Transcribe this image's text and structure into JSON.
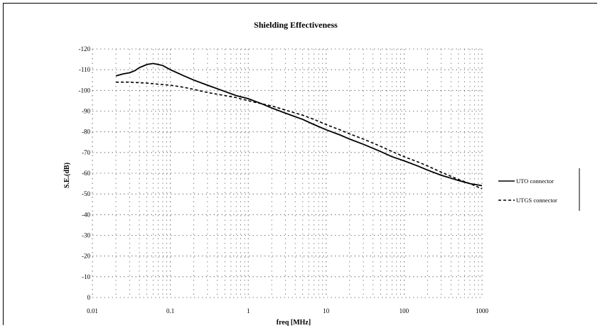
{
  "chart_data": {
    "type": "line",
    "title": "Shielding Effectiveness",
    "xlabel": "freq [MHz]",
    "ylabel": "S.E.(dB)",
    "xscale": "log",
    "xlim": [
      0.01,
      1000
    ],
    "ylim": [
      0,
      -120
    ],
    "x_ticks": [
      0.01,
      0.1,
      1,
      10,
      100,
      1000
    ],
    "x_tick_labels": [
      "0.01",
      "0.1",
      "1",
      "10",
      "100",
      "1000"
    ],
    "y_ticks": [
      -120,
      -110,
      -100,
      -90,
      -80,
      -70,
      -60,
      -50,
      -40,
      -30,
      -20,
      -10,
      0
    ],
    "y_tick_labels": [
      "-120",
      "-110",
      "-100",
      "-90",
      "-80",
      "-70",
      "-60",
      "-50",
      "-40",
      "-30",
      "-20",
      "-10",
      "0"
    ],
    "grid": true,
    "legend_position": "right",
    "series": [
      {
        "name": "UTO connector",
        "style": "solid",
        "color": "#000000",
        "x": [
          0.02,
          0.025,
          0.03,
          0.035,
          0.04,
          0.05,
          0.06,
          0.07,
          0.08,
          0.1,
          0.15,
          0.2,
          0.3,
          0.5,
          0.7,
          1,
          1.5,
          2,
          3,
          5,
          7,
          10,
          15,
          20,
          30,
          50,
          70,
          100,
          150,
          200,
          300,
          500,
          700,
          1000
        ],
        "y": [
          -107,
          -108,
          -108.5,
          -109.5,
          -111,
          -112.5,
          -113,
          -112.5,
          -112,
          -110,
          -107,
          -105,
          -102.5,
          -99.5,
          -97.5,
          -96,
          -93.5,
          -91.5,
          -89,
          -86,
          -83.5,
          -81,
          -78.5,
          -76.5,
          -74,
          -70.5,
          -68,
          -66,
          -63.5,
          -61.5,
          -59,
          -56.5,
          -55,
          -54
        ]
      },
      {
        "name": "UTGS connector",
        "style": "dashed",
        "color": "#000000",
        "x": [
          0.02,
          0.03,
          0.05,
          0.07,
          0.1,
          0.15,
          0.2,
          0.3,
          0.5,
          0.7,
          1,
          1.5,
          2,
          3,
          5,
          7,
          10,
          15,
          20,
          30,
          50,
          70,
          100,
          150,
          200,
          300,
          500,
          700,
          1000
        ],
        "y": [
          -104,
          -104,
          -103.5,
          -103,
          -102.5,
          -101.5,
          -100.5,
          -99,
          -97.5,
          -96.5,
          -95,
          -93.5,
          -92.5,
          -90.5,
          -88,
          -86,
          -83.5,
          -81,
          -79,
          -76.5,
          -73,
          -70.5,
          -68,
          -65.5,
          -63.5,
          -60.5,
          -57,
          -55,
          -52.5
        ]
      }
    ]
  }
}
